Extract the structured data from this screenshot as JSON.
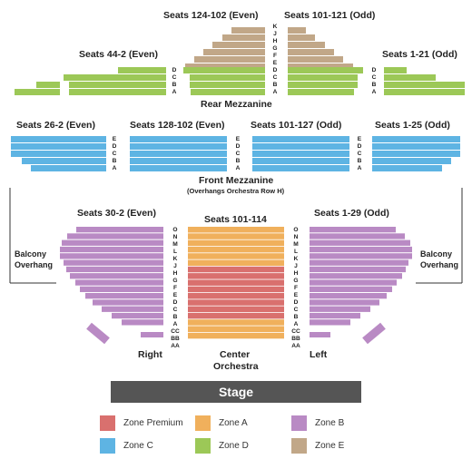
{
  "colors": {
    "premium": "#d9706e",
    "zone_a": "#f0b05c",
    "zone_b": "#b98ac4",
    "zone_c": "#5eb4e3",
    "zone_d": "#9cc857",
    "zone_e": "#c1a788",
    "stage": "#555555"
  },
  "rear_mezzanine": {
    "title": "Rear Mezzanine",
    "center_left_label": "Seats 124-102 (Even)",
    "center_right_label": "Seats 101-121 (Odd)",
    "left_label": "Seats 44-2 (Even)",
    "right_label": "Seats 1-21 (Odd)",
    "center_rows": [
      "K",
      "J",
      "H",
      "G",
      "F",
      "E",
      "D",
      "C",
      "B",
      "A"
    ],
    "side_rows": [
      "D",
      "C",
      "B",
      "A"
    ]
  },
  "front_mezzanine": {
    "title": "Front Mezzanine",
    "subtitle": "(Overhangs Orchestra Row H)",
    "far_left_label": "Seats 26-2 (Even)",
    "center_left_label": "Seats 128-102 (Even)",
    "center_right_label": "Seats 101-127 (Odd)",
    "far_right_label": "Seats 1-25 (Odd)",
    "rows": [
      "E",
      "D",
      "C",
      "B",
      "A"
    ]
  },
  "orchestra": {
    "left_label": "Seats 30-2 (Even)",
    "center_label": "Seats 101-114",
    "right_label": "Seats 1-29 (Odd)",
    "rows": [
      "O",
      "N",
      "M",
      "L",
      "K",
      "J",
      "H",
      "G",
      "F",
      "E",
      "D",
      "C",
      "B",
      "A",
      "CC",
      "BB",
      "AA"
    ],
    "section_right": "Right",
    "section_center_1": "Center",
    "section_center_2": "Orchestra",
    "section_left": "Left",
    "balcony_left_1": "Balcony",
    "balcony_left_2": "Overhang",
    "balcony_right_1": "Balcony",
    "balcony_right_2": "Overhang"
  },
  "stage": {
    "label": "Stage"
  },
  "legend": [
    {
      "label": "Zone Premium",
      "color": "#d9706e"
    },
    {
      "label": "Zone A",
      "color": "#f0b05c"
    },
    {
      "label": "Zone B",
      "color": "#b98ac4"
    },
    {
      "label": "Zone C",
      "color": "#5eb4e3"
    },
    {
      "label": "Zone D",
      "color": "#9cc857"
    },
    {
      "label": "Zone E",
      "color": "#c1a788"
    }
  ]
}
